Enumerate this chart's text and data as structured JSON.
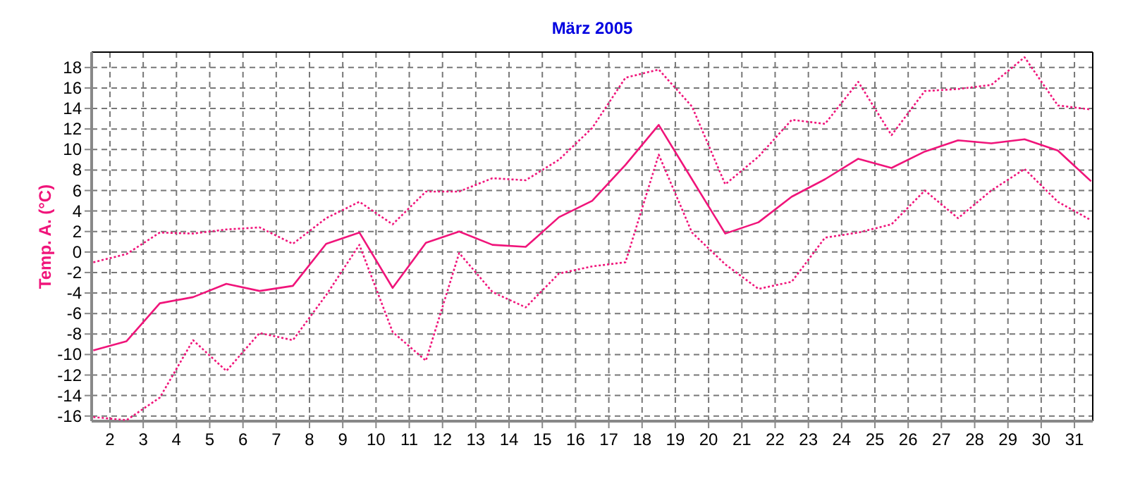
{
  "chart_data": {
    "type": "line",
    "title": "März 2005",
    "ylabel": "Temp. A.  (°C)",
    "x": [
      1.5,
      2.5,
      3.5,
      4.5,
      5.5,
      6.5,
      7.5,
      8.5,
      9.5,
      10.5,
      11.5,
      12.5,
      13.5,
      14.5,
      15.5,
      16.5,
      17.5,
      18.5,
      19.5,
      20.5,
      21.5,
      22.5,
      23.5,
      24.5,
      25.5,
      26.5,
      27.5,
      28.5,
      29.5,
      30.5,
      31.5
    ],
    "series": [
      {
        "color": "#f0147a",
        "line_style": "dotted",
        "values": [
          -1.0,
          -0.2,
          1.9,
          1.8,
          2.2,
          2.4,
          0.8,
          3.3,
          4.9,
          2.7,
          5.9,
          5.9,
          7.2,
          7.0,
          9.0,
          12.1,
          17.0,
          17.8,
          14.2,
          6.6,
          9.3,
          12.9,
          12.5,
          16.6,
          11.4,
          15.7,
          15.9,
          16.3,
          19.0,
          14.3,
          13.9
        ]
      },
      {
        "color": "#f0147a",
        "line_style": "solid",
        "values": [
          -9.6,
          -8.7,
          -5.0,
          -4.4,
          -3.1,
          -3.8,
          -3.3,
          0.8,
          1.9,
          -3.5,
          0.9,
          2.0,
          0.7,
          0.5,
          3.4,
          5.0,
          8.5,
          12.4,
          7.1,
          1.8,
          2.9,
          5.4,
          7.1,
          9.1,
          8.2,
          9.8,
          10.9,
          10.6,
          11.0,
          9.9,
          6.9
        ]
      },
      {
        "color": "#f0147a",
        "line_style": "dotted",
        "values": [
          -16.1,
          -16.4,
          -14.2,
          -8.6,
          -11.6,
          -7.9,
          -8.6,
          -4.2,
          0.7,
          -7.8,
          -10.6,
          -0.1,
          -3.9,
          -5.4,
          -2.1,
          -1.4,
          -1.0,
          9.5,
          1.9,
          -1.2,
          -3.6,
          -2.9,
          1.4,
          1.9,
          2.7,
          6.0,
          3.3,
          6.0,
          8.1,
          4.9,
          3.1
        ]
      }
    ],
    "xlim": [
      1.45,
      31.55
    ],
    "xticks": [
      2,
      3,
      4,
      5,
      6,
      7,
      8,
      9,
      10,
      11,
      12,
      13,
      14,
      15,
      16,
      17,
      18,
      19,
      20,
      21,
      22,
      23,
      24,
      25,
      26,
      27,
      28,
      29,
      30,
      31
    ],
    "ylim": [
      -16.5,
      19.5
    ],
    "yticks": [
      -16,
      -14,
      -12,
      -10,
      -8,
      -6,
      -4,
      -2,
      0,
      2,
      4,
      6,
      8,
      10,
      12,
      14,
      16,
      18
    ],
    "grid": true
  }
}
